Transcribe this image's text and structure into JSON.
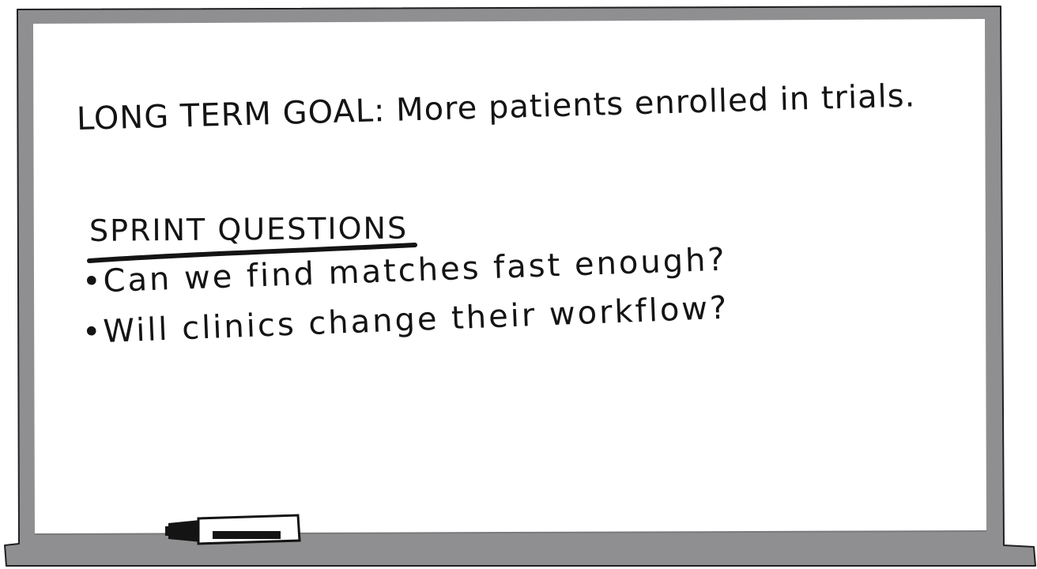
{
  "whiteboard": {
    "goal": "LONG TERM GOAL: More patients enrolled in trials.",
    "sprint_questions": {
      "heading": "SPRINT QUESTIONS",
      "items": [
        "•Can we find matches fast enough?",
        "•Will clinics change their workflow?"
      ]
    }
  },
  "colors": {
    "frame": "#8f8f91",
    "ink": "#141414",
    "board": "#ffffff"
  },
  "icons": {
    "marker": "marker-icon"
  }
}
